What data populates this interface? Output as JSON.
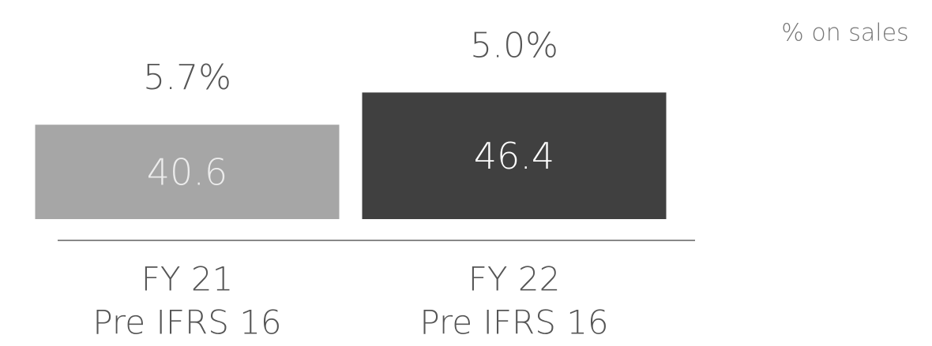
{
  "chart_data": {
    "type": "bar",
    "categories": [
      [
        "FY 21",
        "Pre IFRS 16"
      ],
      [
        "FY 22",
        "Pre IFRS 16"
      ]
    ],
    "values": [
      40.6,
      46.4
    ],
    "colors": [
      "#a6a6a6",
      "#404040"
    ],
    "ylim": [
      23.6,
      50
    ],
    "secondary": {
      "name": "% on sales",
      "values": [
        5.7,
        5.0
      ],
      "value_labels": [
        "5.7%",
        "5.0%"
      ]
    }
  }
}
